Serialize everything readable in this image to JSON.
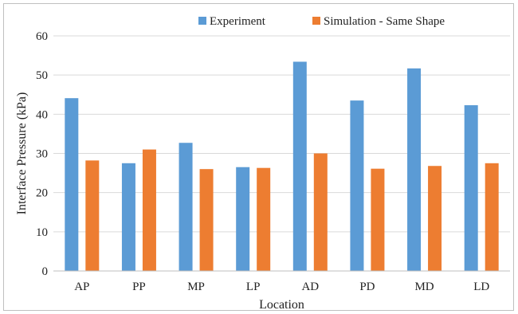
{
  "chart_data": {
    "type": "bar",
    "categories": [
      "AP",
      "PP",
      "MP",
      "LP",
      "AD",
      "PD",
      "MD",
      "LD"
    ],
    "series": [
      {
        "name": "Experiment",
        "color": "#5B9BD5",
        "values": [
          44.1,
          27.5,
          32.7,
          26.5,
          53.4,
          43.5,
          51.7,
          42.3
        ]
      },
      {
        "name": "Simulation - Same Shape",
        "color": "#ED7D31",
        "values": [
          28.2,
          31.0,
          26.0,
          26.3,
          30.0,
          26.1,
          26.8,
          27.5
        ]
      }
    ],
    "xlabel": "Location",
    "ylabel": "Interface Pressure (kPa)",
    "ylim": [
      0,
      60
    ],
    "yticks": [
      0,
      10,
      20,
      30,
      40,
      50,
      60
    ],
    "grid": true,
    "legend_position": "top-right"
  }
}
